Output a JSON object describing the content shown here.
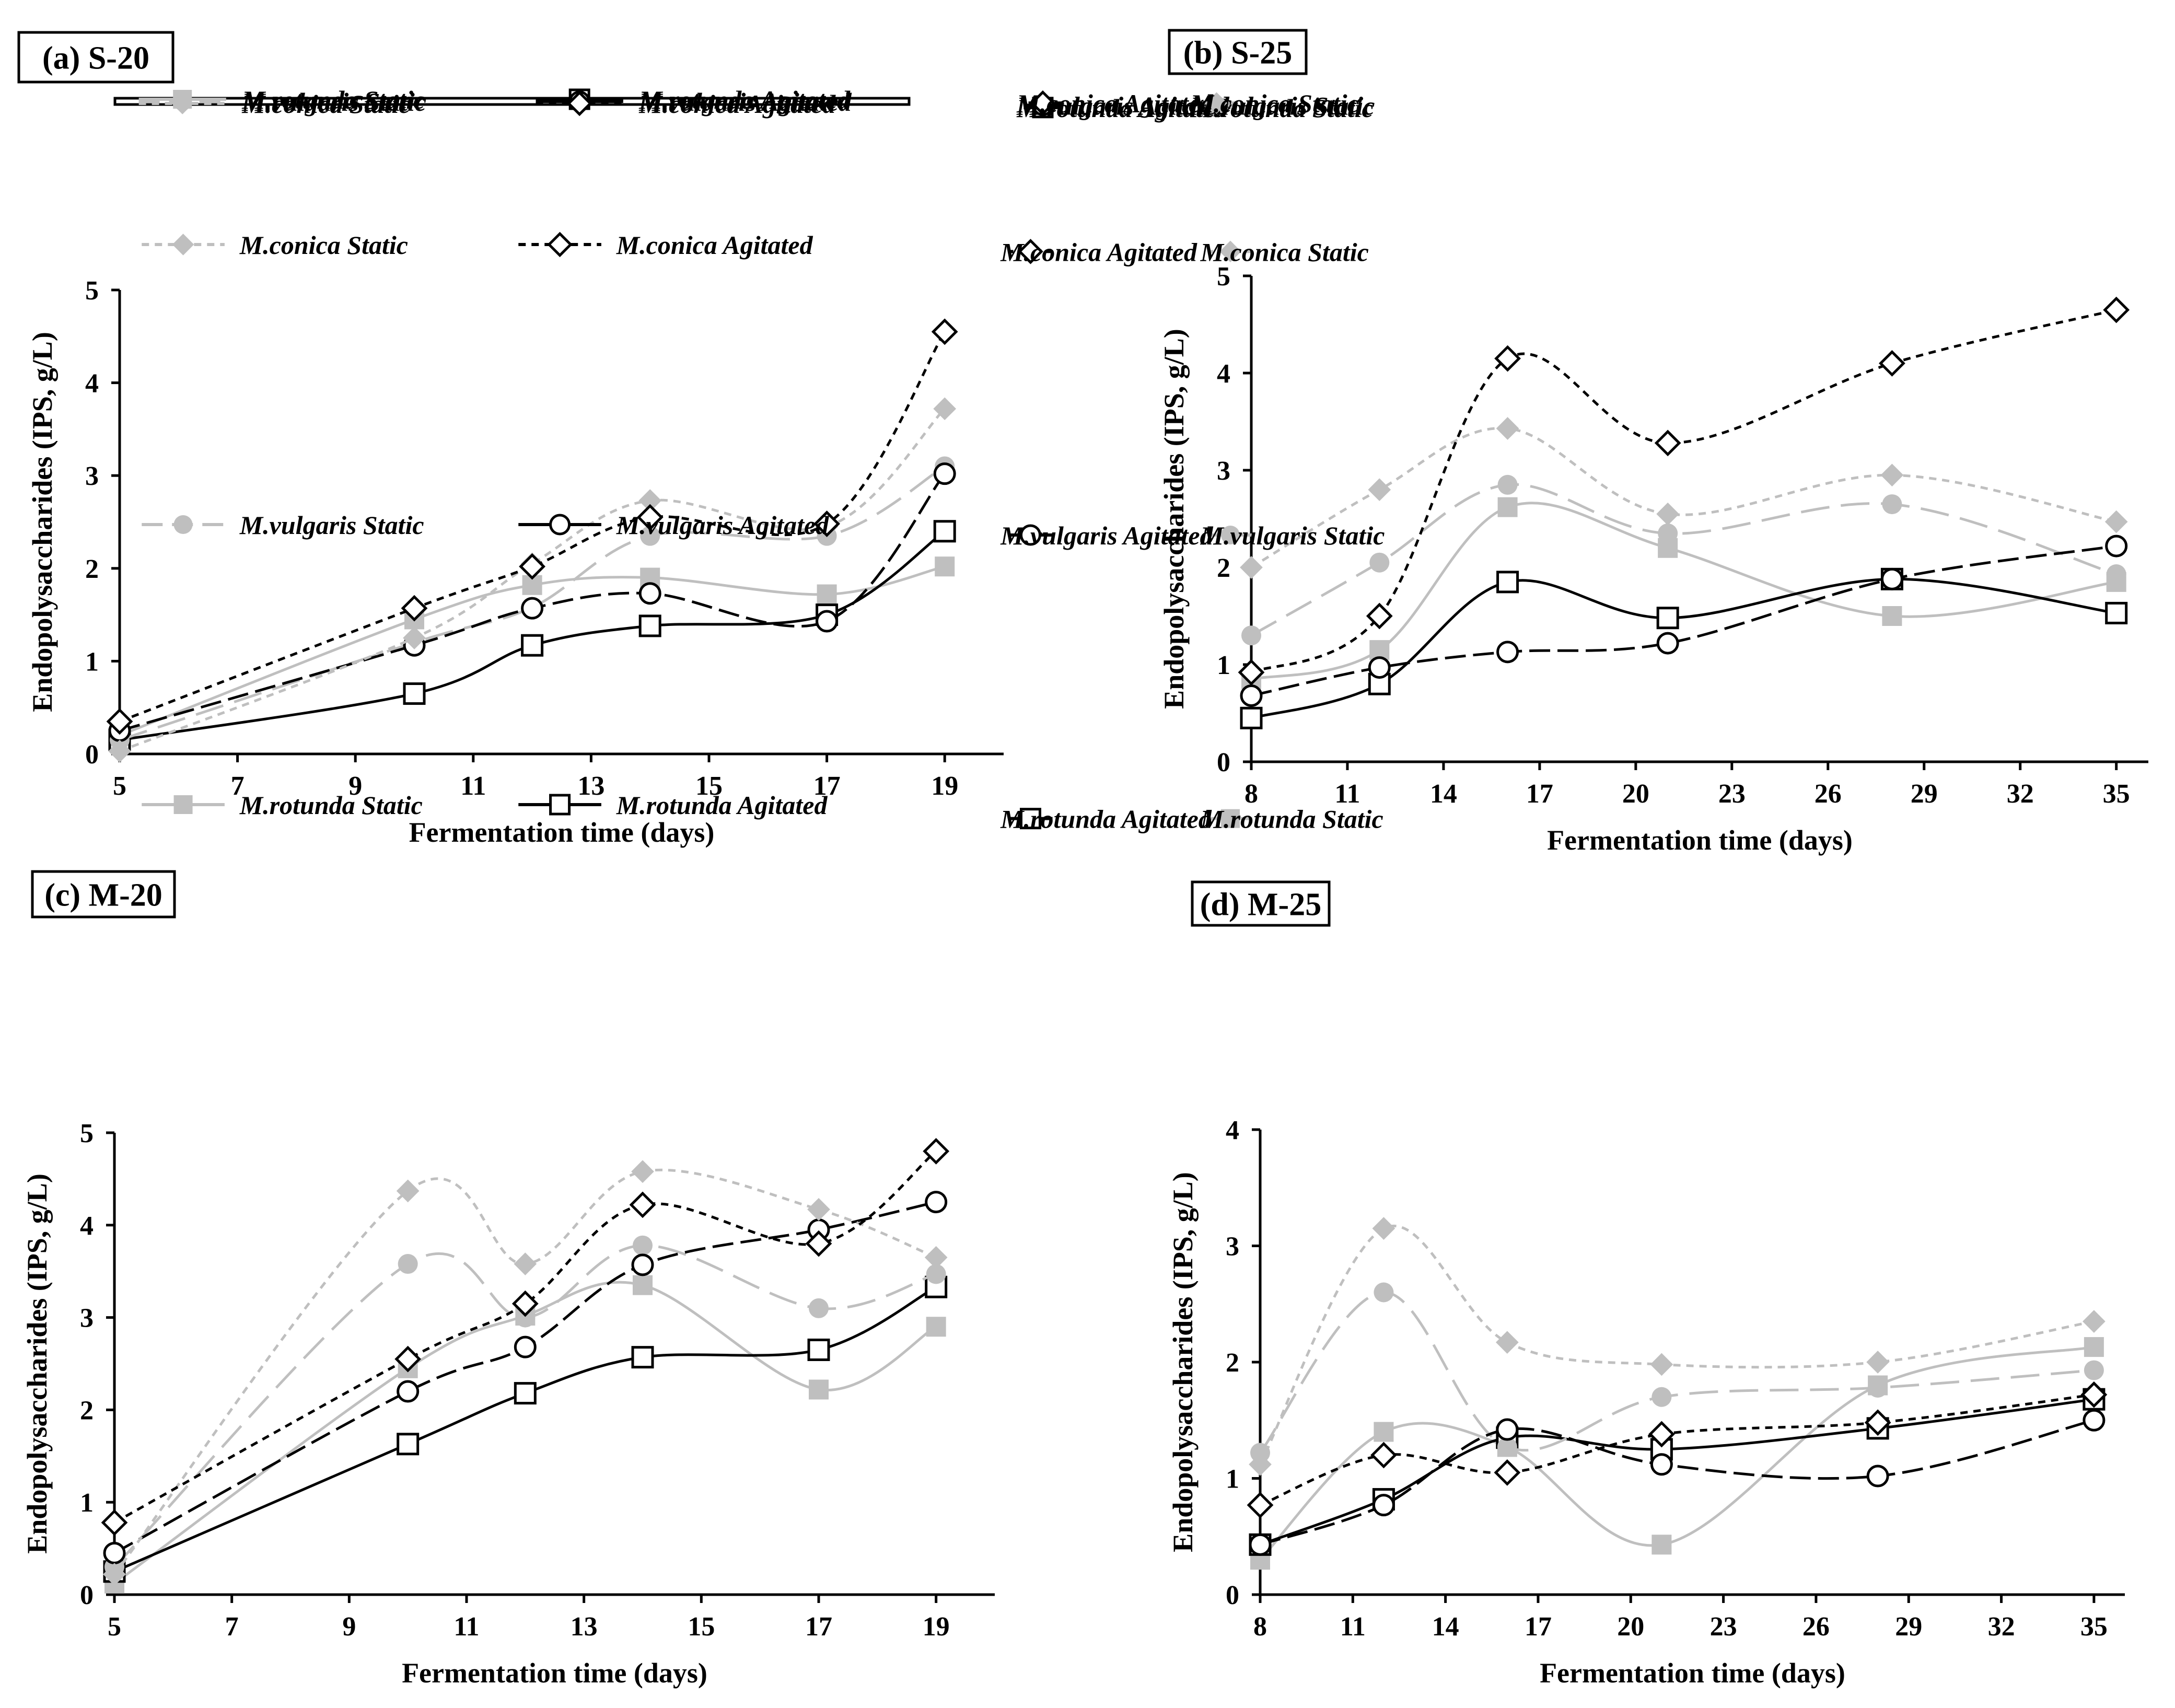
{
  "figure": {
    "ylabel": "Endopolysaccharides (IPS, g/L)",
    "xlabel": "Fermentation time (days)"
  },
  "legend": {
    "entries": [
      {
        "genus": "M.rotunda",
        "mode": "Static"
      },
      {
        "genus": "M.rotunda",
        "mode": "Agitated"
      },
      {
        "genus": "M.vulgaris",
        "mode": "Static"
      },
      {
        "genus": "M.vulgaris",
        "mode": "Agitated"
      },
      {
        "genus": "M.conica",
        "mode": "Static"
      },
      {
        "genus": "M.conica",
        "mode": "Agitated"
      }
    ]
  },
  "colors": {
    "static": "#bfbfbf",
    "agitated": "#000000",
    "background": "#ffffff"
  },
  "chart_data": [
    {
      "type": "line",
      "title": "(a) S-20",
      "xlabel": "Fermentation time (days)",
      "ylabel": "Endopolysaccharides (IPS, g/L)",
      "xlim": [
        5,
        20
      ],
      "xticks": [
        5,
        7,
        9,
        11,
        13,
        15,
        17,
        19
      ],
      "ylim": [
        0,
        5
      ],
      "yticks": [
        0,
        1,
        2,
        3,
        4,
        5
      ],
      "x": [
        5,
        10,
        12,
        14,
        17,
        19
      ],
      "series": [
        {
          "name": "M.rotunda Static",
          "values": [
            0.2,
            1.45,
            1.82,
            1.9,
            1.72,
            2.02
          ]
        },
        {
          "name": "M.rotunda Agitated",
          "values": [
            0.15,
            0.65,
            1.17,
            1.38,
            1.5,
            2.4
          ]
        },
        {
          "name": "M.vulgaris Static",
          "values": [
            0.15,
            1.2,
            1.58,
            2.35,
            2.35,
            3.1
          ]
        },
        {
          "name": "M.vulgaris Agitated",
          "values": [
            0.25,
            1.17,
            1.57,
            1.73,
            1.43,
            3.02
          ]
        },
        {
          "name": "M.conica Static",
          "values": [
            0.03,
            1.25,
            2.05,
            2.73,
            2.45,
            3.72
          ]
        },
        {
          "name": "M.conica Agitated",
          "values": [
            0.35,
            1.57,
            2.02,
            2.55,
            2.48,
            4.55
          ]
        }
      ]
    },
    {
      "type": "line",
      "title": "(b) S-25",
      "xlabel": "Fermentation time (days)",
      "ylabel": "Endopolysaccharides (IPS, g/L)",
      "xlim": [
        8,
        36
      ],
      "xticks": [
        8,
        11,
        14,
        17,
        20,
        23,
        26,
        29,
        32,
        35
      ],
      "ylim": [
        0,
        5
      ],
      "yticks": [
        0,
        1,
        2,
        3,
        4,
        5
      ],
      "x": [
        8,
        12,
        16,
        21,
        28,
        35
      ],
      "series": [
        {
          "name": "M.rotunda Static",
          "values": [
            0.85,
            1.15,
            2.62,
            2.2,
            1.5,
            1.85
          ]
        },
        {
          "name": "M.rotunda Agitated",
          "values": [
            0.45,
            0.8,
            1.85,
            1.48,
            1.88,
            1.53
          ]
        },
        {
          "name": "M.vulgaris Static",
          "values": [
            1.3,
            2.05,
            2.85,
            2.35,
            2.65,
            1.93
          ]
        },
        {
          "name": "M.vulgaris Agitated",
          "values": [
            0.68,
            0.97,
            1.13,
            1.22,
            1.88,
            2.22
          ]
        },
        {
          "name": "M.conica Static",
          "values": [
            2.0,
            2.8,
            3.43,
            2.55,
            2.95,
            2.47
          ]
        },
        {
          "name": "M.conica Agitated",
          "values": [
            0.92,
            1.5,
            4.15,
            3.28,
            4.1,
            4.65
          ]
        }
      ]
    },
    {
      "type": "line",
      "title": "(c) M-20",
      "xlabel": "Fermentation time (days)",
      "ylabel": "Endopolysaccharides (IPS, g/L)",
      "xlim": [
        5,
        20
      ],
      "xticks": [
        5,
        7,
        9,
        11,
        13,
        15,
        17,
        19
      ],
      "ylim": [
        0,
        5
      ],
      "yticks": [
        0,
        1,
        2,
        3,
        4,
        5
      ],
      "x": [
        5,
        10,
        12,
        14,
        17,
        19
      ],
      "series": [
        {
          "name": "M.rotunda Static",
          "values": [
            0.12,
            2.45,
            3.02,
            3.35,
            2.22,
            2.9
          ]
        },
        {
          "name": "M.rotunda Agitated",
          "values": [
            0.25,
            1.63,
            2.18,
            2.57,
            2.65,
            3.33
          ]
        },
        {
          "name": "M.vulgaris Static",
          "values": [
            0.3,
            3.58,
            3.0,
            3.78,
            3.1,
            3.47
          ]
        },
        {
          "name": "M.vulgaris Agitated",
          "values": [
            0.45,
            2.2,
            2.68,
            3.57,
            3.95,
            4.25
          ]
        },
        {
          "name": "M.conica Static",
          "values": [
            0.22,
            4.37,
            3.58,
            4.58,
            4.17,
            3.65
          ]
        },
        {
          "name": "M.conica Agitated",
          "values": [
            0.78,
            2.55,
            3.15,
            4.22,
            3.8,
            4.8
          ]
        }
      ]
    },
    {
      "type": "line",
      "title": "(d) M-25",
      "xlabel": "Fermentation time (days)",
      "ylabel": "Endopolysaccharides (IPS, g/L)",
      "xlim": [
        8,
        36
      ],
      "xticks": [
        8,
        11,
        14,
        17,
        20,
        23,
        26,
        29,
        32,
        35
      ],
      "ylim": [
        0,
        4
      ],
      "yticks": [
        0,
        1,
        2,
        3,
        4
      ],
      "x": [
        8,
        12,
        16,
        21,
        28,
        35
      ],
      "series": [
        {
          "name": "M.rotunda Static",
          "values": [
            0.3,
            1.4,
            1.27,
            0.43,
            1.8,
            2.13
          ]
        },
        {
          "name": "M.rotunda Agitated",
          "values": [
            0.43,
            0.82,
            1.35,
            1.25,
            1.43,
            1.68
          ]
        },
        {
          "name": "M.vulgaris Static",
          "values": [
            1.22,
            2.6,
            1.27,
            1.7,
            1.78,
            1.93
          ]
        },
        {
          "name": "M.vulgaris Agitated",
          "values": [
            0.43,
            0.77,
            1.42,
            1.12,
            1.02,
            1.5
          ]
        },
        {
          "name": "M.conica Static",
          "values": [
            1.12,
            3.15,
            2.17,
            1.98,
            2.0,
            2.35
          ]
        },
        {
          "name": "M.conica Agitated",
          "values": [
            0.77,
            1.2,
            1.05,
            1.38,
            1.48,
            1.72
          ]
        }
      ]
    }
  ]
}
